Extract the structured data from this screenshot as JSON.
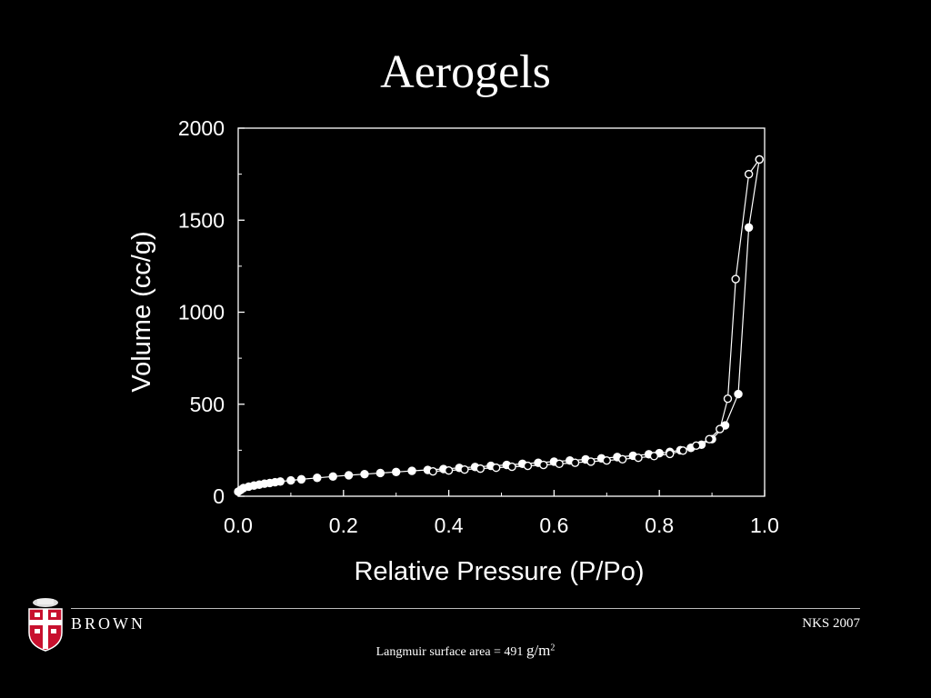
{
  "slide": {
    "title": "Aerogels",
    "footer_brand": "BROWN",
    "footer_right": "NKS 2007",
    "caption_prefix": "Langmuir surface area = 491",
    "caption_unit": "g/m",
    "caption_sup": "2",
    "logo_icon": "brown-university-shield-icon"
  },
  "chart_data": {
    "type": "scatter",
    "xlabel": "Relative Pressure (P/Po)",
    "ylabel": "Volume (cc/g)",
    "xlim": [
      0.0,
      1.0
    ],
    "ylim": [
      0,
      2000
    ],
    "xticks": [
      "0.0",
      "0.2",
      "0.4",
      "0.6",
      "0.8",
      "1.0"
    ],
    "yticks": [
      "0",
      "500",
      "1000",
      "1500",
      "2000"
    ],
    "grid": false,
    "series": [
      {
        "marker": "filled",
        "x": [
          0.0,
          0.005,
          0.01,
          0.02,
          0.03,
          0.04,
          0.05,
          0.06,
          0.07,
          0.08,
          0.1,
          0.12,
          0.15,
          0.18,
          0.21,
          0.24,
          0.27,
          0.3,
          0.33,
          0.36,
          0.39,
          0.42,
          0.45,
          0.48,
          0.51,
          0.54,
          0.57,
          0.6,
          0.63,
          0.66,
          0.69,
          0.72,
          0.75,
          0.78,
          0.8,
          0.82,
          0.84,
          0.86,
          0.88,
          0.9,
          0.925,
          0.95,
          0.97,
          0.99
        ],
        "y": [
          25,
          35,
          45,
          52,
          58,
          63,
          68,
          72,
          76,
          80,
          86,
          92,
          100,
          107,
          114,
          120,
          126,
          132,
          138,
          143,
          148,
          154,
          159,
          165,
          170,
          176,
          182,
          188,
          194,
          200,
          206,
          213,
          220,
          228,
          234,
          241,
          250,
          263,
          280,
          310,
          385,
          555,
          1460,
          1830
        ]
      },
      {
        "marker": "open",
        "x": [
          0.37,
          0.4,
          0.43,
          0.46,
          0.49,
          0.52,
          0.55,
          0.58,
          0.61,
          0.64,
          0.67,
          0.7,
          0.73,
          0.76,
          0.79,
          0.82,
          0.845,
          0.87,
          0.895,
          0.915,
          0.93,
          0.945,
          0.97,
          0.99
        ],
        "y": [
          135,
          140,
          145,
          150,
          155,
          160,
          165,
          170,
          176,
          182,
          188,
          194,
          201,
          209,
          218,
          230,
          248,
          275,
          310,
          365,
          530,
          1180,
          1750,
          1830
        ]
      }
    ]
  }
}
